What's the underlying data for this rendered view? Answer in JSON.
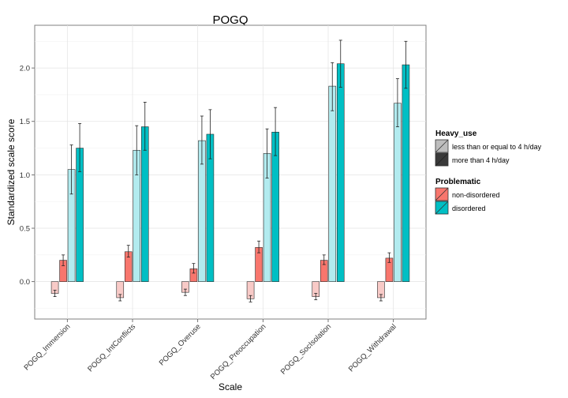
{
  "chart_data": {
    "type": "bar",
    "title": "POGQ",
    "xlabel": "Scale",
    "ylabel": "Standardized scale score",
    "categories": [
      "POGQ_Immersion",
      "POGQ_IntConflicts",
      "POGQ_Overuse",
      "POGQ_Preoccupation",
      "POGQ_SocIsolation",
      "POGQ_Withdrawal"
    ],
    "ylim": [
      -0.35,
      2.4
    ],
    "yticks": [
      0.0,
      0.5,
      1.0,
      1.5,
      2.0
    ],
    "ytick_labels": [
      "0.0",
      "0.5",
      "1.0",
      "1.5",
      "2.0"
    ],
    "grid": true,
    "legend_placement": "right",
    "legend": {
      "heavy_use_title": "Heavy_use",
      "heavy_use_items": [
        "less than or equal to 4 h/day",
        "more than 4 h/day"
      ],
      "problematic_title": "Problematic",
      "problematic_items": [
        "non-disordered",
        "disordered"
      ]
    },
    "series": [
      {
        "heavy_use": "less than or equal to 4 h/day",
        "problematic": "non-disordered",
        "color": "#f8cac7",
        "values": [
          -0.11,
          -0.15,
          -0.1,
          -0.16,
          -0.14,
          -0.15
        ],
        "err_low": [
          -0.14,
          -0.18,
          -0.13,
          -0.19,
          -0.17,
          -0.18
        ],
        "err_high": [
          -0.08,
          -0.12,
          -0.07,
          -0.13,
          -0.11,
          -0.12
        ]
      },
      {
        "heavy_use": "more than 4 h/day",
        "problematic": "non-disordered",
        "color": "#f8766d",
        "values": [
          0.2,
          0.28,
          0.12,
          0.32,
          0.2,
          0.22
        ],
        "err_low": [
          0.15,
          0.23,
          0.08,
          0.27,
          0.16,
          0.18
        ],
        "err_high": [
          0.25,
          0.34,
          0.17,
          0.38,
          0.25,
          0.27
        ]
      },
      {
        "heavy_use": "less than or equal to 4 h/day",
        "problematic": "disordered",
        "color": "#b2ebef",
        "values": [
          1.05,
          1.23,
          1.32,
          1.2,
          1.83,
          1.67
        ],
        "err_low": [
          0.82,
          1.0,
          1.1,
          0.97,
          1.6,
          1.45
        ],
        "err_high": [
          1.28,
          1.46,
          1.55,
          1.43,
          2.05,
          1.9
        ]
      },
      {
        "heavy_use": "more than 4 h/day",
        "problematic": "disordered",
        "color": "#00bfc4",
        "values": [
          1.25,
          1.45,
          1.38,
          1.4,
          2.04,
          2.03
        ],
        "err_low": [
          1.03,
          1.23,
          1.15,
          1.18,
          1.82,
          1.81
        ],
        "err_high": [
          1.48,
          1.68,
          1.61,
          1.63,
          2.26,
          2.25
        ]
      }
    ]
  }
}
